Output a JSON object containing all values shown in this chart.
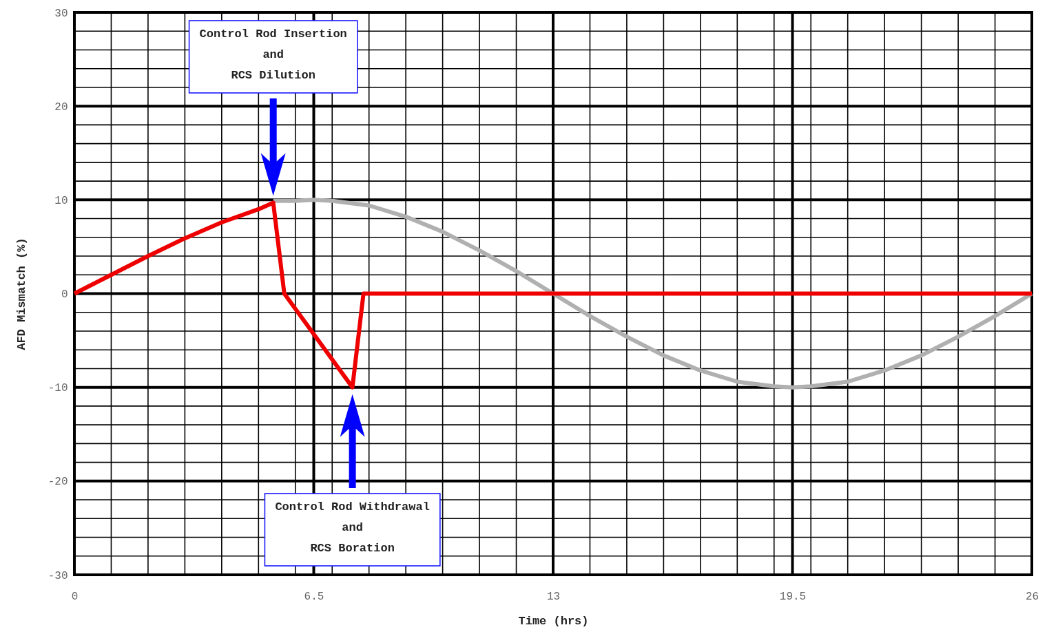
{
  "chart_data": {
    "type": "line",
    "xlabel": "Time (hrs)",
    "ylabel": "AFD Mismatch (%)",
    "xlim": [
      0,
      26
    ],
    "ylim": [
      -30,
      30
    ],
    "xticks": [
      0,
      {
        "value": 1,
        "label": null
      },
      {
        "value": 2,
        "label": null
      },
      {
        "value": 3,
        "label": null
      },
      {
        "value": 4,
        "label": null
      },
      {
        "value": 5,
        "label": null
      },
      {
        "value": 6,
        "label": null
      },
      6.5,
      {
        "value": 7,
        "label": null
      },
      {
        "value": 8,
        "label": null
      },
      {
        "value": 9,
        "label": null
      },
      {
        "value": 10,
        "label": null
      },
      {
        "value": 11,
        "label": null
      },
      {
        "value": 12,
        "label": null
      },
      13,
      {
        "value": 14,
        "label": null
      },
      {
        "value": 15,
        "label": null
      },
      {
        "value": 16,
        "label": null
      },
      {
        "value": 17,
        "label": null
      },
      {
        "value": 18,
        "label": null
      },
      {
        "value": 19,
        "label": null
      },
      19.5,
      {
        "value": 20,
        "label": null
      },
      {
        "value": 21,
        "label": null
      },
      {
        "value": 22,
        "label": null
      },
      {
        "value": 23,
        "label": null
      },
      {
        "value": 24,
        "label": null
      },
      {
        "value": 25,
        "label": null
      },
      26
    ],
    "yticks": [
      -30,
      {
        "value": -28,
        "label": null
      },
      {
        "value": -26,
        "label": null
      },
      {
        "value": -24,
        "label": null
      },
      {
        "value": -22,
        "label": null
      },
      -20,
      {
        "value": -18,
        "label": null
      },
      {
        "value": -16,
        "label": null
      },
      {
        "value": -14,
        "label": null
      },
      {
        "value": -12,
        "label": null
      },
      -10,
      {
        "value": -8,
        "label": null
      },
      {
        "value": -6,
        "label": null
      },
      {
        "value": -4,
        "label": null
      },
      {
        "value": -2,
        "label": null
      },
      0,
      {
        "value": 2,
        "label": null
      },
      {
        "value": 4,
        "label": null
      },
      {
        "value": 6,
        "label": null
      },
      {
        "value": 8,
        "label": null
      },
      10,
      {
        "value": 12,
        "label": null
      },
      {
        "value": 14,
        "label": null
      },
      {
        "value": 16,
        "label": null
      },
      {
        "value": 18,
        "label": null
      },
      20,
      {
        "value": 22,
        "label": null
      },
      {
        "value": 24,
        "label": null
      },
      {
        "value": 26,
        "label": null
      },
      {
        "value": 28,
        "label": null
      },
      30
    ],
    "grid": true,
    "legend": false,
    "marker": "none",
    "line_style": "solid",
    "series": [
      {
        "color": "#b0b0b0",
        "x": [
          5.4,
          6,
          6.5,
          7,
          8,
          9,
          10,
          11,
          12,
          13,
          14,
          15,
          16,
          17,
          18,
          19,
          19.5,
          20,
          21,
          22,
          23,
          24,
          25,
          26
        ],
        "values": [
          9.9,
          9.9,
          10,
          9.9,
          9.4,
          8.2,
          6.6,
          4.6,
          2.4,
          0,
          -2.4,
          -4.6,
          -6.6,
          -8.2,
          -9.4,
          -9.9,
          -10,
          -9.9,
          -9.4,
          -8.2,
          -6.6,
          -4.6,
          -2.4,
          0
        ]
      },
      {
        "color": "#ee0000",
        "x": [
          0,
          1,
          2,
          3,
          4,
          5,
          5.4,
          5.7,
          7.55,
          7.85,
          26
        ],
        "values": [
          0,
          2,
          4,
          5.9,
          7.6,
          9,
          9.7,
          0,
          -10,
          0,
          0
        ]
      }
    ],
    "annotations": [
      "Control Rod Insertion\nand\nRCS Dilution",
      "Control Rod Withdrawal\nand\nRCS Boration"
    ]
  }
}
